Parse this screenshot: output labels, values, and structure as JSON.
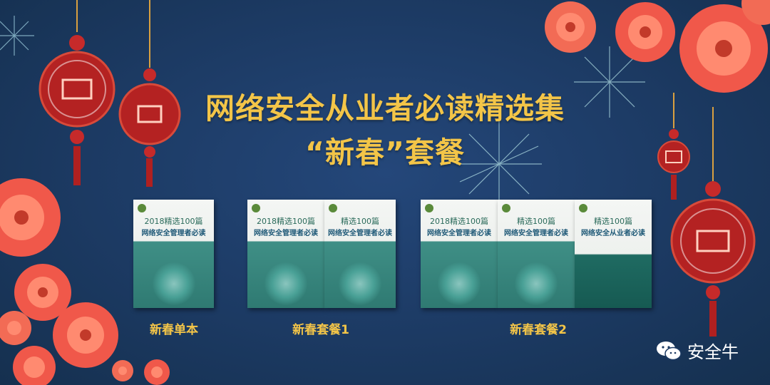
{
  "title_line1": "网络安全从业者必读精选集",
  "title_line2": "“新春”套餐",
  "captions": [
    "新春单本",
    "新春套餐1",
    "新春套餐2"
  ],
  "brand": "安全牛",
  "books": [
    {
      "line1": "2018精选100篇",
      "line2": "网络安全管理者必读"
    },
    {
      "line1": "2018精选100篇",
      "line2": "网络安全管理者必读"
    },
    {
      "line1": "精选100篇",
      "line2": "网络安全管理者必读"
    },
    {
      "line1": "2018精选100篇",
      "line2": "网络安全管理者必读"
    },
    {
      "line1": "精选100篇",
      "line2": "网络安全管理者必读"
    },
    {
      "line1": "精选100篇",
      "line2": "网络安全从业者必读"
    }
  ],
  "colors": {
    "background": "#1c3a63",
    "gold": "#f3c548",
    "flower": "#f0584a",
    "knot": "#c62a2a"
  }
}
